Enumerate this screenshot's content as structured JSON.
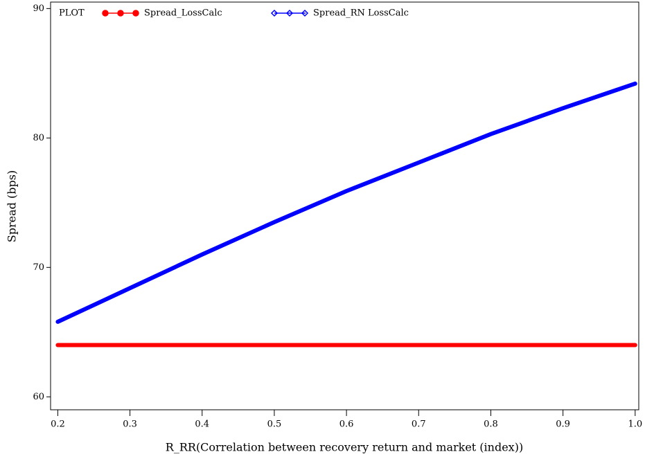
{
  "chart_data": {
    "type": "line",
    "legend_title": "PLOT",
    "xlabel": "R_RR(Correlation between recovery return and market (index))",
    "ylabel": "Spread (bps)",
    "x": [
      0.2,
      0.3,
      0.4,
      0.5,
      0.6,
      0.7,
      0.8,
      0.9,
      1.0
    ],
    "series": [
      {
        "name": "Spread_LossCalc",
        "color": "#ff0000",
        "marker": "circle",
        "values": [
          64,
          64,
          64,
          64,
          64,
          64,
          64,
          64,
          64
        ]
      },
      {
        "name": "Spread_RN LossCalc",
        "color": "#0000ff",
        "marker": "diamond",
        "values": [
          65.8,
          68.4,
          71.0,
          73.5,
          75.9,
          78.1,
          80.3,
          82.3,
          84.2
        ]
      }
    ],
    "xlim": [
      0.19,
      1.005
    ],
    "ylim": [
      59,
      90.5
    ],
    "xticks": [
      {
        "value": 0.2,
        "label": "0.2"
      },
      {
        "value": 0.3,
        "label": "0.3"
      },
      {
        "value": 0.4,
        "label": "0.4"
      },
      {
        "value": 0.5,
        "label": "0.5"
      },
      {
        "value": 0.6,
        "label": "0.6"
      },
      {
        "value": 0.7,
        "label": "0.7"
      },
      {
        "value": 0.8,
        "label": "0.8"
      },
      {
        "value": 0.9,
        "label": "0.9"
      },
      {
        "value": 1.0,
        "label": "1.0"
      }
    ],
    "yticks": [
      60,
      70,
      80,
      90
    ],
    "legend": "top-left"
  }
}
